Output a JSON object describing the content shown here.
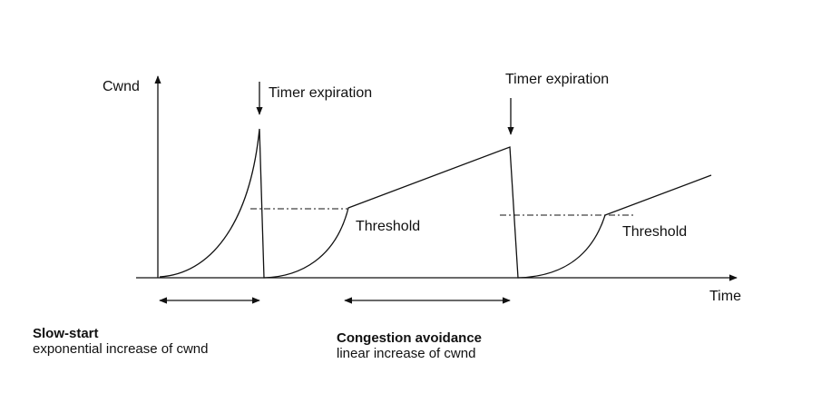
{
  "diagram": {
    "y_axis_label": "Cwnd",
    "x_axis_label": "Time",
    "annotations": {
      "timer_expiration_1": "Timer expiration",
      "timer_expiration_2": "Timer expiration",
      "threshold_1": "Threshold",
      "threshold_2": "Threshold"
    },
    "phases": {
      "slow_start_title": "Slow-start",
      "slow_start_desc": "exponential increase of cwnd",
      "congestion_avoidance_title": "Congestion avoidance",
      "congestion_avoidance_desc": "linear increase of cwnd"
    },
    "colors": {
      "line": "#111111",
      "background": "#ffffff"
    }
  }
}
